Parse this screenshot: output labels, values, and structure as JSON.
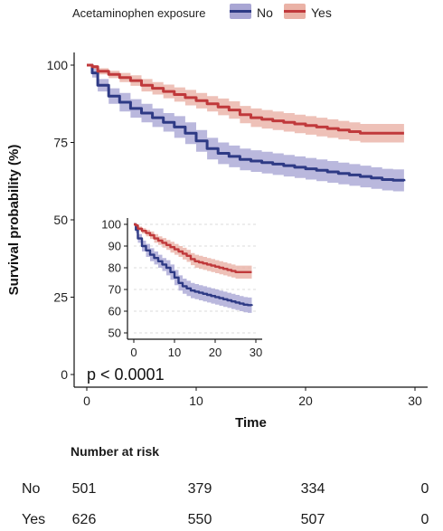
{
  "legend": {
    "title": "Acetaminophen exposure",
    "items": [
      {
        "label": "No",
        "line_color": "#2e3a85",
        "fill_color": "#a9a6d4"
      },
      {
        "label": "Yes",
        "line_color": "#c0393b",
        "fill_color": "#eab2a6"
      }
    ]
  },
  "chart_data": [
    {
      "type": "line",
      "xlabel": "Time",
      "ylabel": "Survival probability (%)",
      "xlim": [
        0,
        30
      ],
      "ylim": [
        0,
        100
      ],
      "x_ticks": [
        0,
        10,
        20,
        30
      ],
      "y_ticks": [
        0,
        25,
        50,
        75,
        100
      ],
      "grid": false,
      "annotation": "p < 0.0001",
      "series": [
        {
          "name": "No",
          "color": "#2e3a85",
          "band_color": "#a9a6d4",
          "x": [
            0,
            0.5,
            1,
            2,
            3,
            4,
            5,
            6,
            7,
            8,
            9,
            10,
            11,
            12,
            13,
            14,
            15,
            16,
            17,
            18,
            19,
            20,
            21,
            22,
            23,
            24,
            25,
            26,
            27,
            28,
            29
          ],
          "y": [
            100,
            97.5,
            93.5,
            90,
            88,
            86,
            84.5,
            83,
            81.5,
            80,
            78,
            75.5,
            73,
            71.5,
            70.5,
            69.5,
            69,
            68.5,
            68,
            67.5,
            67,
            66.5,
            66,
            65.5,
            65,
            64.5,
            64,
            63.5,
            63,
            62.8,
            62.5
          ],
          "ci_lower": [
            100,
            96,
            91.5,
            87.5,
            85,
            83,
            81.5,
            80,
            78.5,
            76.5,
            74.5,
            72,
            69.5,
            68,
            67,
            66,
            65.5,
            65,
            64.5,
            64,
            63.5,
            63,
            62.5,
            62,
            61.5,
            61,
            60.5,
            60,
            59.5,
            59.2,
            58.5
          ],
          "ci_upper": [
            100,
            99,
            95.5,
            92.5,
            91,
            89,
            87.5,
            86,
            84.5,
            83.5,
            81.5,
            79,
            76.5,
            75,
            74,
            73,
            72.5,
            72,
            71.5,
            71,
            70.5,
            70,
            69.5,
            69,
            68.5,
            68,
            67.5,
            67,
            66.5,
            66.3,
            66
          ]
        },
        {
          "name": "Yes",
          "color": "#c0393b",
          "band_color": "#eab2a6",
          "x": [
            0,
            0.5,
            1,
            2,
            3,
            4,
            5,
            6,
            7,
            8,
            9,
            10,
            11,
            12,
            13,
            14,
            15,
            16,
            17,
            18,
            19,
            20,
            21,
            22,
            23,
            24,
            25,
            26,
            27,
            28,
            29
          ],
          "y": [
            100,
            99.5,
            98,
            97,
            96,
            95,
            93.5,
            92.5,
            91.5,
            90.5,
            89.5,
            88.5,
            87.5,
            86.5,
            85.5,
            84,
            83,
            82.5,
            82,
            81.5,
            81,
            80.5,
            80,
            79.5,
            79,
            78.5,
            78,
            78,
            78,
            78,
            78
          ],
          "ci_lower": [
            100,
            98.8,
            97,
            95.8,
            94.5,
            93.3,
            91.5,
            90.5,
            89.3,
            88.2,
            87,
            86,
            85,
            83.8,
            82.7,
            81.2,
            80,
            79.5,
            79,
            78.5,
            78,
            77.5,
            77,
            76.5,
            76,
            75.5,
            75,
            75,
            75,
            75,
            75
          ],
          "ci_upper": [
            100,
            100,
            99,
            98.2,
            97.5,
            96.7,
            95.5,
            94.5,
            93.7,
            92.8,
            92,
            91,
            90,
            89.2,
            88.3,
            86.8,
            86,
            85.5,
            85,
            84.5,
            84,
            83.5,
            83,
            82.5,
            82,
            81.5,
            81,
            81,
            81,
            81,
            81
          ]
        }
      ]
    },
    {
      "type": "line",
      "inset": true,
      "xlim": [
        0,
        30
      ],
      "ylim": [
        50,
        100
      ],
      "x_ticks": [
        0,
        10,
        20,
        30
      ],
      "y_ticks": [
        50,
        60,
        70,
        80,
        90,
        100
      ],
      "grid": true,
      "series_ref": [
        "No",
        "Yes"
      ]
    }
  ],
  "risk_table": {
    "title": "Number at risk",
    "time_points": [
      0,
      10,
      20,
      30
    ],
    "rows": [
      {
        "label": "No",
        "values": [
          "501",
          "379",
          "334",
          "0"
        ]
      },
      {
        "label": "Yes",
        "values": [
          "626",
          "550",
          "507",
          "0"
        ]
      }
    ]
  }
}
